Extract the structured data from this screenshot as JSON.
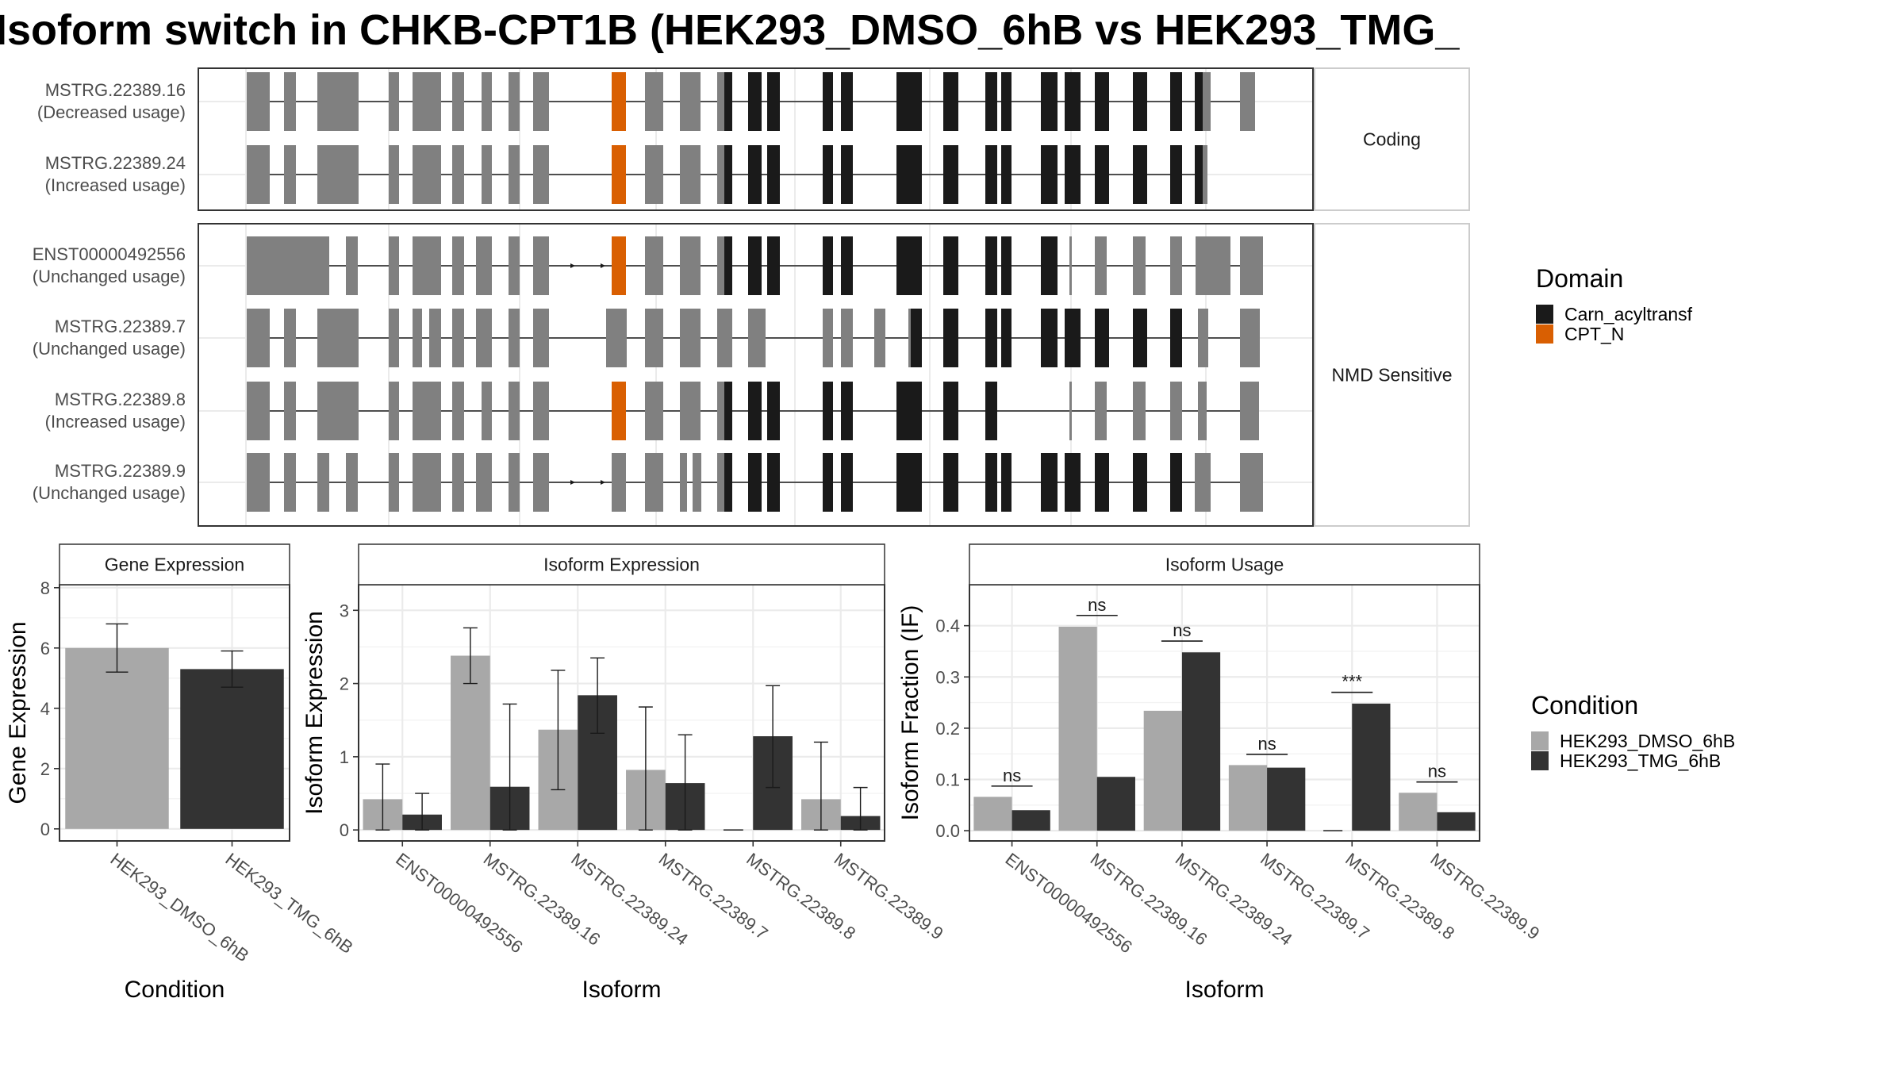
{
  "title": "Isoform switch in CHKB-CPT1B (HEK293_DMSO_6hB vs HEK293_TMG_",
  "colors": {
    "dmso": "#a8a8a8",
    "tmg": "#333333",
    "exon": "#808080",
    "carn": "#1a1a1a",
    "cptn": "#d95f02",
    "grid": "#ebebeb",
    "panel_border": "#333333",
    "strip_border": "#cccccc"
  },
  "domain_legend": {
    "title": "Domain",
    "items": [
      {
        "label": "Carn_acyltransf",
        "color": "#1a1a1a"
      },
      {
        "label": "CPT_N",
        "color": "#d95f02"
      }
    ]
  },
  "condition_legend": {
    "title": "Condition",
    "items": [
      {
        "label": "HEK293_DMSO_6hB",
        "color": "#a8a8a8"
      },
      {
        "label": "HEK293_TMG_6hB",
        "color": "#333333"
      }
    ]
  },
  "chart_data": [
    {
      "type": "gene-structure",
      "facets": [
        {
          "label": "Coding",
          "isoforms": [
            {
              "name": "MSTRG.22389.16",
              "usage": "(Decreased usage)"
            },
            {
              "name": "MSTRG.22389.24",
              "usage": "(Increased usage)"
            }
          ]
        },
        {
          "label": "NMD Sensitive",
          "isoforms": [
            {
              "name": "ENST00000492556",
              "usage": "(Unchanged usage)"
            },
            {
              "name": "MSTRG.22389.7",
              "usage": "(Unchanged usage)"
            },
            {
              "name": "MSTRG.22389.8",
              "usage": "(Increased usage)"
            },
            {
              "name": "MSTRG.22389.9",
              "usage": "(Unchanged usage)"
            }
          ]
        }
      ],
      "domains": [
        "Carn_acyltransf",
        "CPT_N"
      ]
    },
    {
      "type": "bar",
      "title": "Gene Expression",
      "xlabel": "Condition",
      "ylabel": "Gene Expression",
      "categories": [
        "HEK293_DMSO_6hB",
        "HEK293_TMG_6hB"
      ],
      "values": [
        6.0,
        5.3
      ],
      "errors": [
        [
          5.2,
          6.8
        ],
        [
          4.7,
          5.9
        ]
      ],
      "ylim": [
        -0.4,
        8.1
      ],
      "yticks": [
        0,
        2,
        4,
        6,
        8
      ]
    },
    {
      "type": "bar",
      "title": "Isoform Expression",
      "xlabel": "Isoform",
      "ylabel": "Isoform Expression",
      "categories": [
        "ENST00000492556",
        "MSTRG.22389.16",
        "MSTRG.22389.24",
        "MSTRG.22389.7",
        "MSTRG.22389.8",
        "MSTRG.22389.9"
      ],
      "series": [
        {
          "name": "HEK293_DMSO_6hB",
          "values": [
            0.42,
            2.38,
            1.37,
            0.82,
            0.0,
            0.42
          ],
          "errors": [
            [
              0.0,
              0.9
            ],
            [
              2.0,
              2.76
            ],
            [
              0.55,
              2.18
            ],
            [
              0.0,
              1.68
            ],
            null,
            [
              0.0,
              1.2
            ]
          ]
        },
        {
          "name": "HEK293_TMG_6hB",
          "values": [
            0.21,
            0.59,
            1.84,
            0.64,
            1.28,
            0.19
          ],
          "errors": [
            [
              0.0,
              0.5
            ],
            [
              0.0,
              1.72
            ],
            [
              1.32,
              2.35
            ],
            [
              0.0,
              1.3
            ],
            [
              0.58,
              1.97
            ],
            [
              0.0,
              0.58
            ]
          ]
        }
      ],
      "ylim": [
        -0.15,
        3.35
      ],
      "yticks": [
        0,
        1,
        2,
        3
      ]
    },
    {
      "type": "bar",
      "title": "Isoform Usage",
      "xlabel": "Isoform",
      "ylabel": "Isoform Fraction (IF)",
      "categories": [
        "ENST00000492556",
        "MSTRG.22389.16",
        "MSTRG.22389.24",
        "MSTRG.22389.7",
        "MSTRG.22389.8",
        "MSTRG.22389.9"
      ],
      "series": [
        {
          "name": "HEK293_DMSO_6hB",
          "values": [
            0.066,
            0.398,
            0.234,
            0.128,
            0.0,
            0.074
          ]
        },
        {
          "name": "HEK293_TMG_6hB",
          "values": [
            0.04,
            0.105,
            0.348,
            0.123,
            0.248,
            0.036
          ]
        }
      ],
      "significance": [
        {
          "label": "ns",
          "y": 0.087
        },
        {
          "label": "ns",
          "y": 0.42
        },
        {
          "label": "ns",
          "y": 0.37
        },
        {
          "label": "ns",
          "y": 0.149
        },
        {
          "label": "***",
          "y": 0.27
        },
        {
          "label": "ns",
          "y": 0.095
        }
      ],
      "ylim": [
        -0.02,
        0.48
      ],
      "yticks": [
        0.0,
        0.1,
        0.2,
        0.3,
        0.4
      ],
      "ytick_labels": [
        "0.0",
        "0.1",
        "0.2",
        "0.3",
        "0.4"
      ]
    }
  ]
}
